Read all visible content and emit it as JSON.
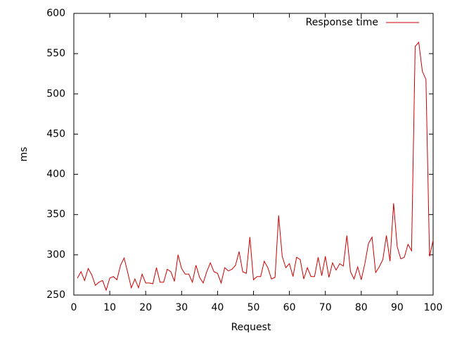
{
  "chart_data": {
    "type": "line",
    "xlabel": "Request",
    "ylabel": "ms",
    "x": [
      1,
      2,
      3,
      4,
      5,
      6,
      7,
      8,
      9,
      10,
      11,
      12,
      13,
      14,
      15,
      16,
      17,
      18,
      19,
      20,
      21,
      22,
      23,
      24,
      25,
      26,
      27,
      28,
      29,
      30,
      31,
      32,
      33,
      34,
      35,
      36,
      37,
      38,
      39,
      40,
      41,
      42,
      43,
      44,
      45,
      46,
      47,
      48,
      49,
      50,
      51,
      52,
      53,
      54,
      55,
      56,
      57,
      58,
      59,
      60,
      61,
      62,
      63,
      64,
      65,
      66,
      67,
      68,
      69,
      70,
      71,
      72,
      73,
      74,
      75,
      76,
      77,
      78,
      79,
      80,
      81,
      82,
      83,
      84,
      85,
      86,
      87,
      88,
      89,
      90,
      91,
      92,
      93,
      94,
      95,
      96,
      97,
      98,
      99,
      100
    ],
    "series": [
      {
        "name": "Response time",
        "color": "#cc0000",
        "values": [
          271,
          279,
          268,
          283,
          275,
          262,
          266,
          268,
          256,
          271,
          273,
          269,
          287,
          296,
          278,
          259,
          270,
          259,
          276,
          265,
          265,
          264,
          284,
          266,
          266,
          282,
          279,
          267,
          300,
          283,
          276,
          276,
          266,
          287,
          272,
          265,
          279,
          290,
          279,
          277,
          265,
          284,
          280,
          282,
          287,
          304,
          279,
          277,
          322,
          269,
          273,
          273,
          292,
          284,
          270,
          272,
          349,
          298,
          284,
          289,
          273,
          297,
          294,
          270,
          284,
          273,
          273,
          297,
          274,
          298,
          272,
          290,
          281,
          289,
          286,
          324,
          279,
          270,
          285,
          269,
          289,
          314,
          322,
          278,
          285,
          294,
          324,
          292,
          364,
          310,
          295,
          297,
          313,
          305,
          559,
          564,
          528,
          518,
          298,
          318
        ]
      }
    ],
    "xlim": [
      0,
      100
    ],
    "xticks": [
      0,
      10,
      20,
      30,
      40,
      50,
      60,
      70,
      80,
      90,
      100
    ],
    "ylim": [
      250,
      600
    ],
    "yticks": [
      250,
      300,
      350,
      400,
      450,
      500,
      550,
      600
    ],
    "legend": "top-right"
  }
}
